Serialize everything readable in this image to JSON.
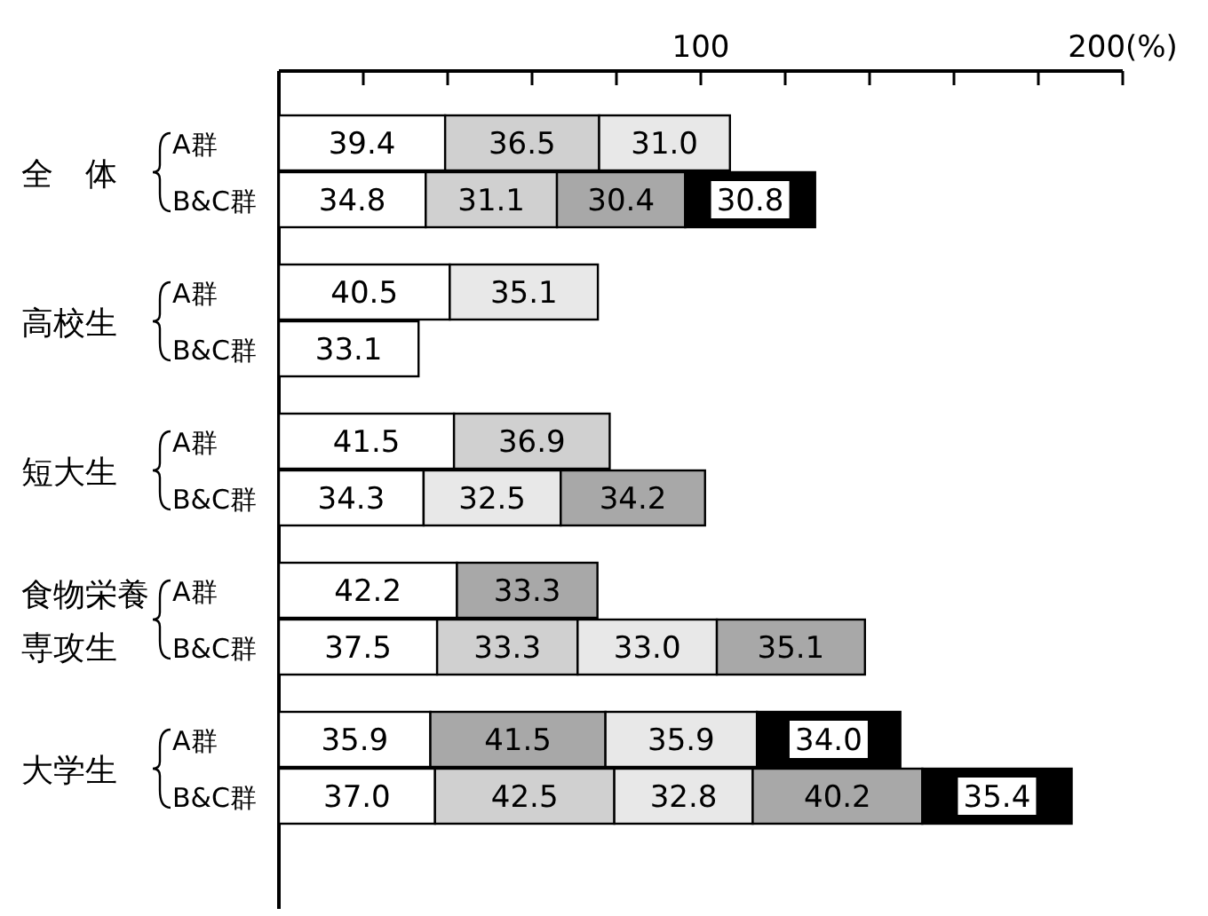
{
  "chart_data": {
    "type": "bar",
    "orientation": "horizontal",
    "stacked": true,
    "categories": [
      "A群",
      "B&C群",
      "A群",
      "B&C群",
      "A群",
      "B&C群",
      "A群",
      "B&C群",
      "A群",
      "B&C群"
    ],
    "annotations": [
      "全　体",
      "高校生",
      "短大生",
      "食物栄養専攻生",
      "大学生"
    ],
    "xlim": [
      0,
      200
    ],
    "xticks": [
      {
        "value": 0,
        "label": null
      },
      {
        "value": 20,
        "label": null
      },
      {
        "value": 40,
        "label": null
      },
      {
        "value": 60,
        "label": null
      },
      {
        "value": 80,
        "label": null
      },
      100,
      {
        "value": 120,
        "label": null
      },
      {
        "value": 140,
        "label": null
      },
      {
        "value": 160,
        "label": null
      },
      {
        "value": 180,
        "label": null
      },
      {
        "value": 200,
        "label": "200(%)"
      }
    ],
    "series": [
      {
        "values": [
          39.4,
          34.8,
          40.5,
          33.1,
          41.5,
          34.3,
          42.2,
          37.5,
          35.9,
          37.0
        ],
        "value_labels": [
          "39.4",
          "34.8",
          "40.5",
          "33.1",
          "41.5",
          "34.3",
          "42.2",
          "37.5",
          "35.9",
          "37.0"
        ],
        "colors": [
          "#ffffff",
          "#ffffff",
          "#ffffff",
          "#ffffff",
          "#ffffff",
          "#ffffff",
          "#ffffff",
          "#ffffff",
          "#ffffff",
          "#ffffff"
        ]
      },
      {
        "values": [
          36.5,
          31.1,
          35.1,
          null,
          36.9,
          32.5,
          33.3,
          33.3,
          41.5,
          42.5
        ],
        "value_labels": [
          "36.5",
          "31.1",
          "35.1",
          null,
          "36.9",
          "32.5",
          "33.3",
          "33.3",
          "41.5",
          "42.5"
        ],
        "colors": [
          "#d0d0d0",
          "#d0d0d0",
          "#e8e8e8",
          null,
          "#d0d0d0",
          "#e8e8e8",
          "#a8a8a8",
          "#d0d0d0",
          "#a8a8a8",
          "#d0d0d0"
        ]
      },
      {
        "values": [
          31.0,
          30.4,
          null,
          null,
          null,
          34.2,
          null,
          33.0,
          35.9,
          32.8
        ],
        "value_labels": [
          "31.0",
          "30.4",
          null,
          null,
          null,
          "34.2",
          null,
          "33.0",
          "35.9",
          "32.8"
        ],
        "colors": [
          "#e8e8e8",
          "#a8a8a8",
          null,
          null,
          null,
          "#a8a8a8",
          null,
          "#e8e8e8",
          "#e8e8e8",
          "#e8e8e8"
        ]
      },
      {
        "values": [
          null,
          30.8,
          null,
          null,
          null,
          null,
          null,
          35.1,
          34.0,
          40.2
        ],
        "value_labels": [
          null,
          "30.8",
          null,
          null,
          null,
          null,
          null,
          "35.1",
          "34.0",
          "40.2"
        ],
        "colors": [
          null,
          "#000000",
          null,
          null,
          null,
          null,
          null,
          "#a8a8a8",
          "#000000",
          "#a8a8a8"
        ]
      },
      {
        "values": [
          null,
          null,
          null,
          null,
          null,
          null,
          null,
          null,
          null,
          35.4
        ],
        "value_labels": [
          null,
          null,
          null,
          null,
          null,
          null,
          null,
          null,
          null,
          "35.4"
        ],
        "colors": [
          null,
          null,
          null,
          null,
          null,
          null,
          null,
          null,
          null,
          "#000000"
        ]
      }
    ]
  }
}
